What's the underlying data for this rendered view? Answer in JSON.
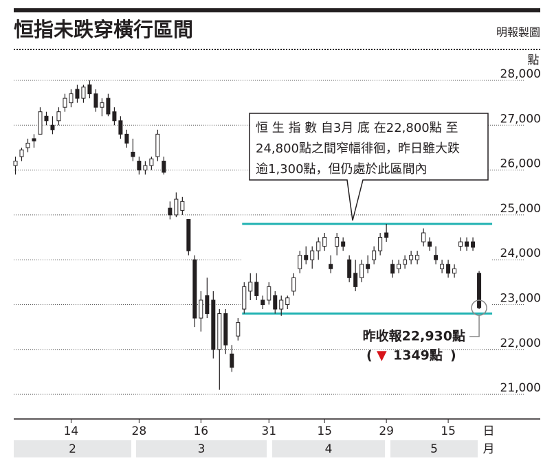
{
  "chart_data": {
    "type": "candlestick",
    "title": "恒指未跌穿橫行區間",
    "source": "明報製圖",
    "y_unit": "點",
    "x_unit": "日",
    "month_unit": "月",
    "months": [
      "2",
      "3",
      "4",
      "5"
    ],
    "ylim": [
      20500,
      28500
    ],
    "yticks": [
      {
        "value": 28000,
        "label": "28,000"
      },
      {
        "value": 27000,
        "label": "27,000"
      },
      {
        "value": 26000,
        "label": "26,000"
      },
      {
        "value": 25000,
        "label": "25,000"
      },
      {
        "value": 24000,
        "label": "24,000"
      },
      {
        "value": 23000,
        "label": "23,000"
      },
      {
        "value": 22000,
        "label": "22,000"
      },
      {
        "value": 21000,
        "label": "21,000"
      }
    ],
    "xlim": [
      -0.5,
      84
    ],
    "xticks": [
      {
        "value": 9,
        "label": "14"
      },
      {
        "value": 20,
        "label": "28"
      },
      {
        "value": 30,
        "label": "16"
      },
      {
        "value": 41,
        "label": "31"
      },
      {
        "value": 50,
        "label": "15"
      },
      {
        "value": 60,
        "label": "29"
      },
      {
        "value": 70,
        "label": "15"
      }
    ],
    "grid": true,
    "up_color": "#ffffff",
    "down_color": "#231f20",
    "candles": [
      [
        26100,
        26300,
        25900,
        26200
      ],
      [
        26300,
        26500,
        26200,
        26450
      ],
      [
        26500,
        26700,
        26400,
        26600
      ],
      [
        26700,
        26800,
        26500,
        26650
      ],
      [
        26800,
        27400,
        26800,
        27300
      ],
      [
        27200,
        27300,
        27000,
        27100
      ],
      [
        27000,
        27200,
        26800,
        26900
      ],
      [
        27100,
        27400,
        27000,
        27300
      ],
      [
        27400,
        27700,
        27300,
        27600
      ],
      [
        27500,
        27800,
        27400,
        27700
      ],
      [
        27800,
        27900,
        27500,
        27600
      ],
      [
        27600,
        27900,
        27500,
        27850
      ],
      [
        27900,
        28000,
        27600,
        27700
      ],
      [
        27700,
        27800,
        27300,
        27400
      ],
      [
        27400,
        27600,
        27200,
        27500
      ],
      [
        27600,
        27700,
        27200,
        27250
      ],
      [
        27300,
        27400,
        27000,
        27100
      ],
      [
        27100,
        27200,
        26700,
        26800
      ],
      [
        26800,
        26900,
        26500,
        26600
      ],
      [
        26400,
        26700,
        26200,
        26300
      ],
      [
        26200,
        26300,
        25900,
        26000
      ],
      [
        26000,
        26200,
        25900,
        26100
      ],
      [
        26100,
        26300,
        26000,
        26250
      ],
      [
        26300,
        26900,
        26200,
        26800
      ],
      [
        26200,
        26300,
        25900,
        25950
      ],
      [
        25150,
        25300,
        24900,
        25000
      ],
      [
        25000,
        25500,
        24950,
        25350
      ],
      [
        25100,
        25400,
        25000,
        25300
      ],
      [
        24900,
        24900,
        24100,
        24200
      ],
      [
        24000,
        24100,
        22500,
        22700
      ],
      [
        22700,
        23300,
        22400,
        23100
      ],
      [
        23200,
        23600,
        22700,
        22800
      ],
      [
        23100,
        23300,
        21800,
        22000
      ],
      [
        22000,
        22900,
        21100,
        22800
      ],
      [
        22800,
        22900,
        21900,
        22100
      ],
      [
        21900,
        22100,
        21500,
        21600
      ],
      [
        22300,
        22700,
        22200,
        22600
      ],
      [
        22900,
        23500,
        22800,
        23400
      ],
      [
        23300,
        23700,
        23100,
        23500
      ],
      [
        23500,
        23700,
        23100,
        23200
      ],
      [
        23100,
        23200,
        22900,
        23000
      ],
      [
        23100,
        23500,
        23000,
        23400
      ],
      [
        23200,
        23300,
        22800,
        22900
      ],
      [
        22900,
        23200,
        22750,
        23100
      ],
      [
        23000,
        23200,
        22900,
        23150
      ],
      [
        23300,
        23700,
        23200,
        23600
      ],
      [
        23800,
        24200,
        23700,
        24100
      ],
      [
        24100,
        24300,
        23900,
        24000
      ],
      [
        24000,
        24300,
        23800,
        24200
      ],
      [
        24200,
        24500,
        24000,
        24400
      ],
      [
        24300,
        24600,
        24200,
        24500
      ],
      [
        23900,
        24100,
        23700,
        23800
      ],
      [
        24300,
        24600,
        24100,
        24500
      ],
      [
        24400,
        24500,
        24200,
        24300
      ],
      [
        24000,
        24100,
        23500,
        23600
      ],
      [
        23700,
        24000,
        23300,
        23400
      ],
      [
        23600,
        24000,
        23500,
        23900
      ],
      [
        23900,
        24100,
        23700,
        23800
      ],
      [
        24000,
        24300,
        23900,
        24200
      ],
      [
        24200,
        24600,
        24100,
        24500
      ],
      [
        24600,
        24800,
        24400,
        24500
      ],
      [
        23900,
        24000,
        23600,
        23700
      ],
      [
        23800,
        24000,
        23700,
        23900
      ],
      [
        23900,
        24100,
        23800,
        24000
      ],
      [
        24000,
        24200,
        23900,
        24100
      ],
      [
        24000,
        24200,
        23900,
        24100
      ],
      [
        24400,
        24700,
        24300,
        24600
      ],
      [
        24400,
        24500,
        24200,
        24300
      ],
      [
        24100,
        24300,
        23900,
        24000
      ],
      [
        23800,
        24000,
        23700,
        23900
      ],
      [
        23900,
        24000,
        23600,
        23700
      ],
      [
        23700,
        23900,
        23600,
        23800
      ],
      [
        24300,
        24500,
        24200,
        24400
      ],
      [
        24400,
        24500,
        24200,
        24300
      ],
      [
        24400,
        24500,
        24200,
        24279
      ],
      [
        23700,
        23750,
        22900,
        22930
      ]
    ],
    "channel": {
      "upper": 24800,
      "lower": 22800,
      "color": "#20b2b2",
      "start": 37
    },
    "annotation": [
      "恒 生 指 數 自3月 底 在22,800點 至",
      "24,800點之間窄幅徘徊，昨日雖大跌",
      "逾1,300點，但仍處於此區間內"
    ],
    "last_label": "昨收報22,930點",
    "change_open": "(",
    "change_symbol": "▼",
    "change_label": "1349點",
    "change_close": ")",
    "change_color": "#d7141a"
  }
}
